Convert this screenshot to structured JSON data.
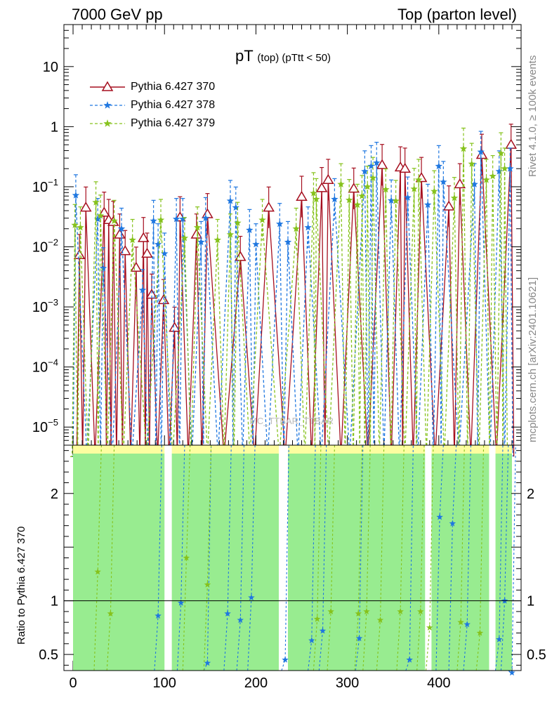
{
  "header": {
    "left": "7000 GeV pp",
    "right": "Top (parton level)"
  },
  "side_text": {
    "top": "Rivet 4.1.0, ≥ 100k events",
    "bottom": "mcplots.cern.ch [arXiv:2401.10621]"
  },
  "watermark": "MC_TTBAR_TTBAR",
  "chart_data": {
    "type": "line",
    "title": "pT (top) (pTtt < 50)",
    "title_main": "pT",
    "title_sub": "(top) (pTtt < 50)",
    "xlabel": "",
    "ylabel_main": "",
    "ylabel_ratio": "Ratio to Pythia 6.427 370",
    "xlim": [
      -10,
      490
    ],
    "ylim_main": [
      5e-06,
      50
    ],
    "ylim_ratio": [
      0.35,
      2.45
    ],
    "yscale_main": "log",
    "x_ticks": [
      0,
      100,
      200,
      300,
      400
    ],
    "y_ticks_main": [
      {
        "v": 1e-05,
        "base": "10",
        "exp": "−5"
      },
      {
        "v": 0.0001,
        "base": "10",
        "exp": "−4"
      },
      {
        "v": 0.001,
        "base": "10",
        "exp": "−3"
      },
      {
        "v": 0.01,
        "base": "10",
        "exp": "−2"
      },
      {
        "v": 0.1,
        "base": "10",
        "exp": "−1"
      },
      {
        "v": 1,
        "base": "1",
        "exp": ""
      },
      {
        "v": 10,
        "base": "10",
        "exp": ""
      }
    ],
    "y_ticks_ratio": [
      {
        "v": 0.5,
        "label": "0.5"
      },
      {
        "v": 1,
        "label": "1"
      },
      {
        "v": 2,
        "label": "2"
      }
    ],
    "legend": [
      {
        "name": "Pythia 6.427 370",
        "color": "#a50e1e",
        "marker": "triangle",
        "dash": "solid"
      },
      {
        "name": "Pythia 6.427 378",
        "color": "#1f77e0",
        "marker": "star",
        "dash": "dashed"
      },
      {
        "name": "Pythia 6.427 379",
        "color": "#86c21c",
        "marker": "star",
        "dash": "dashed"
      }
    ],
    "series": [
      {
        "name": "Pythia 6.427 370",
        "points": [
          [
            7,
            0.0073
          ],
          [
            14,
            0.045
          ],
          [
            34,
            0.037
          ],
          [
            39,
            0.028
          ],
          [
            44,
            0.026
          ],
          [
            51,
            0.016
          ],
          [
            57,
            0.0085
          ],
          [
            69,
            0.0045
          ],
          [
            77,
            0.014
          ],
          [
            81,
            0.0077
          ],
          [
            86,
            0.0016
          ],
          [
            99,
            0.0013
          ],
          [
            111,
            0.00045
          ],
          [
            117,
            0.031
          ],
          [
            135,
            0.016
          ],
          [
            147,
            0.035
          ],
          [
            183,
            0.0068
          ],
          [
            214,
            0.045
          ],
          [
            250,
            0.068
          ],
          [
            272,
            0.095
          ],
          [
            279,
            0.13
          ],
          [
            307,
            0.093
          ],
          [
            338,
            0.23
          ],
          [
            358,
            0.21
          ],
          [
            363,
            0.2
          ],
          [
            381,
            0.14
          ],
          [
            411,
            0.047
          ],
          [
            423,
            0.11
          ],
          [
            447,
            0.34
          ],
          [
            479,
            0.5
          ]
        ]
      },
      {
        "name": "Pythia 6.427 378",
        "points": [
          [
            3,
            0.072
          ],
          [
            27,
            0.029
          ],
          [
            33,
            0.0044
          ],
          [
            53,
            0.02
          ],
          [
            76,
            0.0019
          ],
          [
            88,
            0.027
          ],
          [
            93,
            0.011
          ],
          [
            100,
            0.0077
          ],
          [
            113,
            0.029
          ],
          [
            120,
            0.029
          ],
          [
            140,
            0.012
          ],
          [
            145,
            0.03
          ],
          [
            172,
            0.058
          ],
          [
            178,
            0.045
          ],
          [
            193,
            0.019
          ],
          [
            200,
            0.011
          ],
          [
            226,
            0.024
          ],
          [
            235,
            0.012
          ],
          [
            257,
            0.021
          ],
          [
            286,
            0.062
          ],
          [
            319,
            0.18
          ],
          [
            326,
            0.22
          ],
          [
            332,
            0.25
          ],
          [
            348,
            0.059
          ],
          [
            366,
            0.066
          ],
          [
            388,
            0.05
          ],
          [
            400,
            0.22
          ],
          [
            405,
            0.12
          ],
          [
            439,
            0.11
          ],
          [
            446,
            0.38
          ],
          [
            466,
            0.18
          ],
          [
            478,
            0.2
          ]
        ]
      },
      {
        "name": "Pythia 6.427 379",
        "points": [
          [
            2,
            0.023
          ],
          [
            8,
            0.021
          ],
          [
            25,
            0.055
          ],
          [
            30,
            0.033
          ],
          [
            45,
            0.027
          ],
          [
            65,
            0.013
          ],
          [
            96,
            0.028
          ],
          [
            122,
            0.014
          ],
          [
            136,
            0.021
          ],
          [
            158,
            0.013
          ],
          [
            172,
            0.016
          ],
          [
            180,
            0.025
          ],
          [
            207,
            0.028
          ],
          [
            244,
            0.02
          ],
          [
            263,
            0.078
          ],
          [
            266,
            0.062
          ],
          [
            293,
            0.11
          ],
          [
            302,
            0.06
          ],
          [
            311,
            0.05
          ],
          [
            316,
            0.07
          ],
          [
            322,
            0.1
          ],
          [
            328,
            0.14
          ],
          [
            342,
            0.09
          ],
          [
            353,
            0.058
          ],
          [
            373,
            0.092
          ],
          [
            378,
            0.13
          ],
          [
            395,
            0.084
          ],
          [
            417,
            0.065
          ],
          [
            427,
            0.43
          ],
          [
            436,
            0.24
          ],
          [
            452,
            0.13
          ],
          [
            459,
            0.15
          ],
          [
            468,
            0.36
          ],
          [
            472,
            0.2
          ]
        ]
      }
    ],
    "ratio_series": [
      {
        "name": "Pythia 6.427 378",
        "points": [
          [
            93,
            0.86
          ],
          [
            118,
            0.98
          ],
          [
            147,
            0.42
          ],
          [
            169,
            0.88
          ],
          [
            183,
            0.82
          ],
          [
            195,
            1.03
          ],
          [
            232,
            0.45
          ],
          [
            261,
            0.63
          ],
          [
            273,
            0.72
          ],
          [
            313,
            0.65
          ],
          [
            368,
            0.45
          ],
          [
            401,
            1.78
          ],
          [
            415,
            1.72
          ],
          [
            431,
            0.78
          ],
          [
            466,
            0.64
          ],
          [
            472,
            1.0
          ],
          [
            480,
            0.33
          ]
        ]
      },
      {
        "name": "Pythia 6.427 379",
        "points": [
          [
            27,
            1.27
          ],
          [
            41,
            0.88
          ],
          [
            124,
            1.4
          ],
          [
            147,
            1.15
          ],
          [
            267,
            0.83
          ],
          [
            282,
            0.9
          ],
          [
            312,
            0.88
          ],
          [
            321,
            0.9
          ],
          [
            336,
            0.82
          ],
          [
            358,
            0.9
          ],
          [
            380,
            0.9
          ],
          [
            390,
            0.75
          ],
          [
            424,
            0.8
          ],
          [
            445,
            0.7
          ]
        ]
      }
    ],
    "ratio_band_gaps": [
      [
        100,
        108
      ],
      [
        225,
        235
      ],
      [
        385,
        392
      ],
      [
        455,
        462
      ]
    ]
  }
}
